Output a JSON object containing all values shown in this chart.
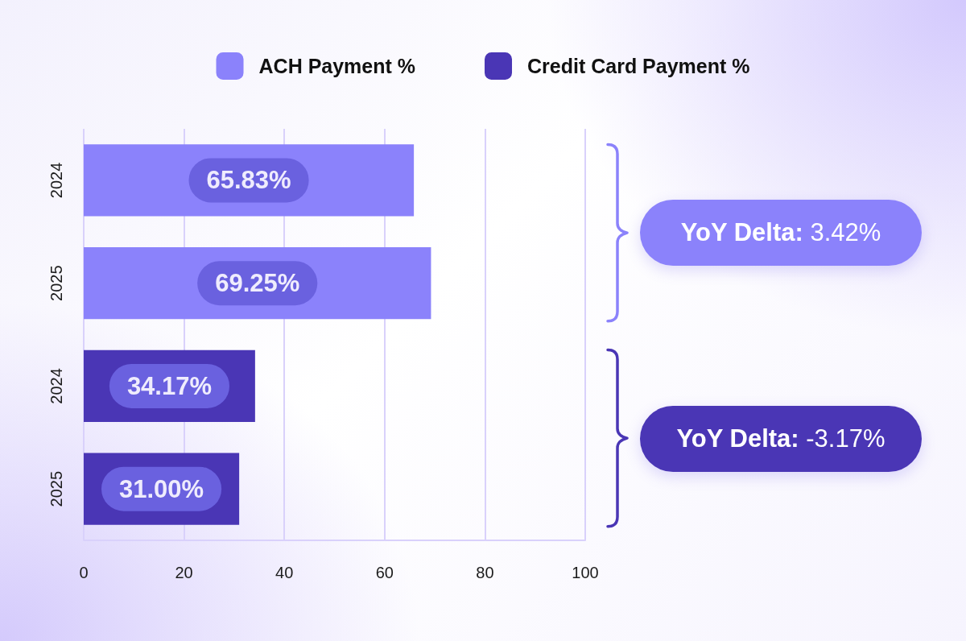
{
  "chart_data": {
    "type": "bar",
    "orientation": "horizontal",
    "stacked": true,
    "categories": [
      "2024",
      "2025",
      "2024",
      "2025"
    ],
    "series": [
      {
        "name": "ACH Payment %",
        "color": "#8b82fb",
        "values": [
          65.83,
          69.25,
          null,
          null
        ],
        "value_labels": [
          "65.83%",
          "69.25%",
          null,
          null
        ]
      },
      {
        "name": "Credit Card Payment %",
        "color": "#4a36b5",
        "values": [
          null,
          null,
          34.17,
          31.0
        ],
        "value_labels": [
          null,
          null,
          "34.17%",
          "31.00%"
        ]
      }
    ],
    "xlim": [
      0,
      100
    ],
    "xticks": [
      0,
      20,
      40,
      60,
      80,
      100
    ],
    "grid": "x",
    "legend": "top",
    "annotations": [
      "YoY Delta: 3.42%",
      "YoY Delta: -3.17%"
    ]
  }
}
